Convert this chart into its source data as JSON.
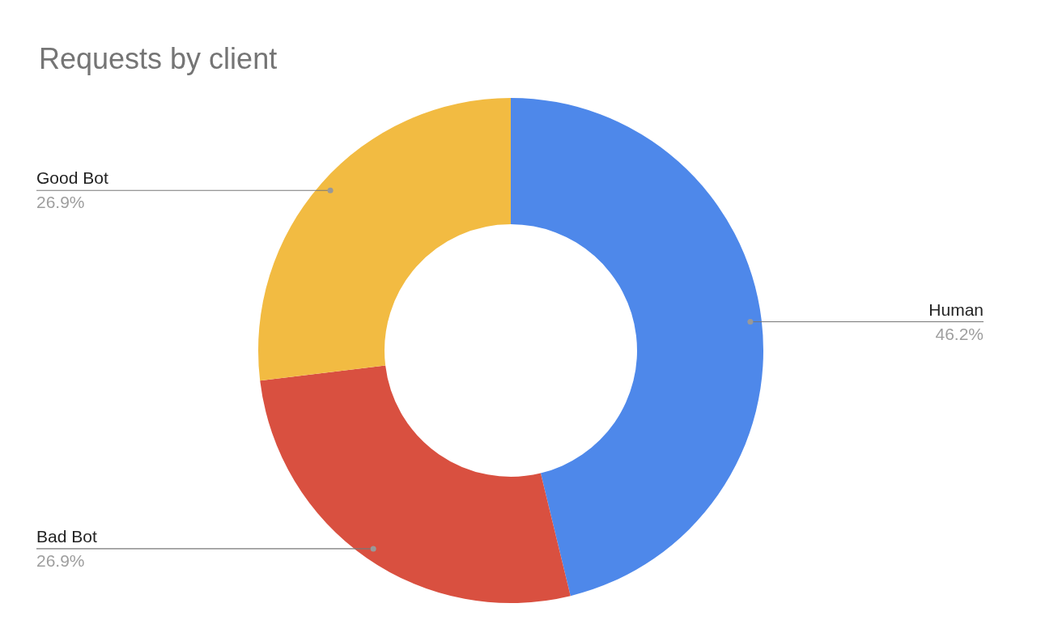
{
  "chart_data": {
    "type": "donut",
    "title": "Requests by client",
    "categories": [
      "Human",
      "Bad Bot",
      "Good Bot"
    ],
    "values": [
      46.2,
      26.9,
      26.9
    ],
    "colors": [
      "#4e88ea",
      "#d95040",
      "#f2bb42"
    ],
    "value_labels": [
      "46.2%",
      "26.9%",
      "26.9%"
    ],
    "legend": false
  }
}
